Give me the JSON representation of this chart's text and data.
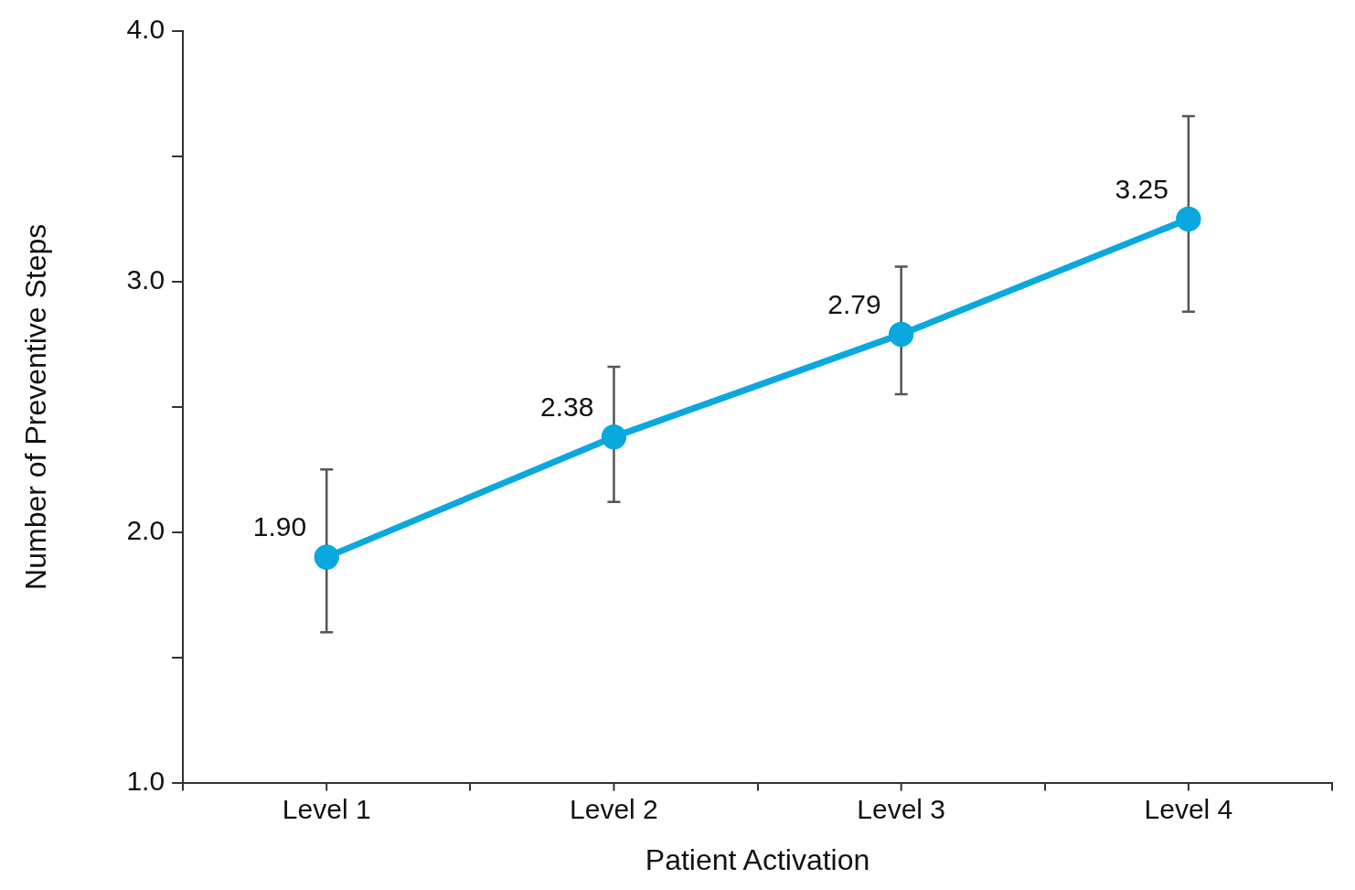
{
  "chart_data": {
    "type": "line",
    "xlabel": "Patient Activation",
    "ylabel": "Number of Preventive Steps",
    "categories": [
      "Level 1",
      "Level 2",
      "Level 3",
      "Level 4"
    ],
    "series": [
      {
        "color": "#0aa8de",
        "values": [
          1.9,
          2.38,
          2.79,
          3.25
        ],
        "value_labels": [
          "1.90",
          "2.38",
          "2.79",
          "3.25"
        ],
        "errors": [
          [
            1.6,
            2.25
          ],
          [
            2.12,
            2.66
          ],
          [
            2.55,
            3.06
          ],
          [
            2.88,
            3.66
          ]
        ]
      }
    ],
    "ylim": [
      1,
      4
    ],
    "yticks": [
      {
        "value": 1,
        "label": "1.0"
      },
      {
        "value": 1.5,
        "label": null
      },
      {
        "value": 2,
        "label": "2.0"
      },
      {
        "value": 2.5,
        "label": null
      },
      {
        "value": 3,
        "label": "3.0"
      },
      {
        "value": 3.5,
        "label": null
      },
      {
        "value": 4,
        "label": "4.0"
      }
    ],
    "grid": false,
    "legend": false,
    "marker": "circle",
    "line_style": "solid"
  }
}
